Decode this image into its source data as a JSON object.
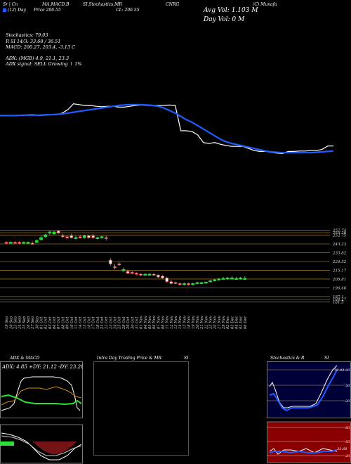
{
  "header": {
    "provider": "(C) Munafa",
    "title": "CNRG",
    "subtitle": "Sr | Cn",
    "indicators_label": "MA,MACD,B",
    "stoch_label": "SI,Stochastics,MR",
    "close_label": "CL: 206.55",
    "period_label": "(12) Day",
    "price_label": "Price 206.55",
    "avg_vol": "Avg Vol: 1.103 M",
    "day_vol": "Day Vol: 0  M"
  },
  "info": {
    "stochastics": "Stochastics: 79.03",
    "rsi": "R          SI 14/3: 33.68 / 36.51",
    "macd": "MACD: 200.27, 203.4, -3.13 C",
    "adx": "ADX:                    (MGB) 4.9, 21.1, 23.3",
    "adx_signal": "ADX  signal: SELL  Growing ↑ 1%"
  },
  "chart_data": [
    {
      "type": "line",
      "name": "moving averages",
      "x": [
        0,
        1,
        2,
        3,
        4,
        5,
        6,
        7,
        8,
        9,
        10,
        11,
        12,
        13,
        14,
        15,
        16,
        17,
        18,
        19,
        20,
        21,
        22,
        23,
        24,
        25,
        26,
        27,
        28,
        29,
        30,
        31,
        32,
        33,
        34,
        35,
        36,
        37,
        38,
        39,
        40,
        41,
        42,
        43,
        44,
        45,
        46,
        47,
        48,
        49,
        50,
        51,
        52,
        53,
        54,
        55,
        56,
        57,
        58,
        59
      ],
      "series": [
        {
          "name": "price",
          "color": "#ffffff",
          "values": [
            253,
            253,
            252.5,
            253.5,
            253,
            254,
            254,
            253,
            253.5,
            254,
            254,
            256,
            260,
            267,
            266,
            265,
            265,
            264,
            263.5,
            264,
            264,
            263,
            263,
            264,
            265,
            265.5,
            265,
            265,
            265,
            265,
            265.5,
            265,
            235,
            235,
            234,
            230,
            221,
            220,
            221,
            219,
            217.5,
            216.5,
            216.5,
            216.5,
            214,
            211.5,
            210.5,
            210.5,
            209.5,
            208.5,
            208,
            210.5,
            210.5,
            211,
            211,
            211.5,
            211.5,
            213,
            217,
            217
          ]
        },
        {
          "name": "ma",
          "color": "#1f5bff",
          "values": [
            253,
            253,
            253,
            253,
            253.5,
            253.5,
            253.5,
            253.5,
            254,
            254,
            254.5,
            255,
            256,
            257,
            258,
            259,
            260,
            261,
            262,
            263,
            264,
            265,
            265.5,
            266,
            266,
            266,
            265.5,
            265,
            264,
            262,
            259,
            256,
            252,
            248,
            245,
            241,
            237,
            233,
            229,
            225,
            222,
            220,
            218.5,
            217,
            215.5,
            214,
            212.5,
            211,
            210,
            209.5,
            209,
            209,
            209,
            209,
            209,
            209,
            209.5,
            210,
            210.5,
            211
          ]
        }
      ],
      "ylim": [
        190,
        290
      ]
    },
    {
      "type": "candlestick",
      "name": "daily price",
      "x_labels": [
        "19 Sep",
        "20 Sep",
        "23 Sep",
        "24 Sep",
        "25 Sep",
        "26 Sep",
        "27 Sep",
        "30 Sep",
        "01 Oct",
        "02 Oct",
        "03 Oct",
        "04 Oct",
        "07 Oct",
        "08 Oct",
        "09 Oct",
        "10 Oct",
        "11 Oct",
        "14 Oct",
        "15 Oct",
        "16 Oct",
        "17 Oct",
        "18 Oct",
        "21 Oct",
        "22 Oct",
        "23 Oct",
        "24 Oct",
        "25 Oct",
        "28 Oct",
        "29 Oct",
        "30 Oct",
        "31 Oct",
        "01 Nov",
        "04 Nov",
        "05 Nov",
        "06 Nov",
        "07 Nov",
        "08 Nov",
        "11 Nov",
        "12 Nov",
        "13 Nov",
        "14 Nov",
        "15 Nov",
        "18 Nov",
        "19 Nov",
        "20 Nov",
        "21 Nov",
        "22 Nov",
        "25 Nov",
        "26 Nov",
        "27 Nov",
        "29 Nov",
        "02 Dec",
        "03 Dec",
        "04 Dec",
        "05 Dec",
        "06 Dec"
      ],
      "candles": [
        {
          "o": 245,
          "h": 246,
          "l": 243,
          "c": 244
        },
        {
          "o": 245,
          "h": 246,
          "l": 244,
          "c": 245
        },
        {
          "o": 245,
          "h": 246,
          "l": 244,
          "c": 244.5
        },
        {
          "o": 245,
          "h": 246,
          "l": 243,
          "c": 244
        },
        {
          "o": 245,
          "h": 246,
          "l": 244,
          "c": 245
        },
        {
          "o": 244,
          "h": 246,
          "l": 243,
          "c": 245
        },
        {
          "o": 244,
          "h": 246,
          "l": 243,
          "c": 243.5
        },
        {
          "o": 245,
          "h": 248,
          "l": 244,
          "c": 247
        },
        {
          "o": 248,
          "h": 252,
          "l": 247,
          "c": 250
        },
        {
          "o": 251,
          "h": 254,
          "l": 250,
          "c": 253
        },
        {
          "o": 255,
          "h": 257,
          "l": 253,
          "c": 256
        },
        {
          "o": 254,
          "h": 257,
          "l": 253,
          "c": 256
        },
        {
          "o": 257,
          "h": 258,
          "l": 254,
          "c": 255
        },
        {
          "o": 252,
          "h": 254,
          "l": 250,
          "c": 251
        },
        {
          "o": 251,
          "h": 253,
          "l": 249,
          "c": 250
        },
        {
          "o": 252,
          "h": 254,
          "l": 249,
          "c": 250
        },
        {
          "o": 249,
          "h": 252,
          "l": 248,
          "c": 250
        },
        {
          "o": 251,
          "h": 253,
          "l": 249,
          "c": 250
        },
        {
          "o": 250,
          "h": 253,
          "l": 249,
          "c": 252
        },
        {
          "o": 252,
          "h": 253,
          "l": 249,
          "c": 250
        },
        {
          "o": 252,
          "h": 254,
          "l": 249,
          "c": 250
        },
        {
          "o": 249,
          "h": 251,
          "l": 248,
          "c": 250
        },
        {
          "o": 250,
          "h": 252,
          "l": 249,
          "c": 251
        },
        {
          "o": 250,
          "h": 252,
          "l": 247,
          "c": 249
        },
        {
          "o": 226,
          "h": 228,
          "l": 220,
          "c": 222
        },
        {
          "o": 219,
          "h": 222,
          "l": 216,
          "c": 218
        },
        {
          "o": 222,
          "h": 224,
          "l": 220,
          "c": 221
        },
        {
          "o": 215,
          "h": 218,
          "l": 213,
          "c": 216
        },
        {
          "o": 214,
          "h": 216,
          "l": 211,
          "c": 212
        },
        {
          "o": 213,
          "h": 214,
          "l": 211,
          "c": 212
        },
        {
          "o": 212,
          "h": 213,
          "l": 210,
          "c": 211
        },
        {
          "o": 211,
          "h": 212,
          "l": 209,
          "c": 210
        },
        {
          "o": 210,
          "h": 212,
          "l": 209,
          "c": 211
        },
        {
          "o": 210,
          "h": 212,
          "l": 209,
          "c": 211
        },
        {
          "o": 211,
          "h": 212,
          "l": 209,
          "c": 210
        },
        {
          "o": 210,
          "h": 211,
          "l": 207,
          "c": 208
        },
        {
          "o": 209,
          "h": 210,
          "l": 206,
          "c": 207
        },
        {
          "o": 207,
          "h": 208,
          "l": 202,
          "c": 203
        },
        {
          "o": 203,
          "h": 205,
          "l": 200,
          "c": 201
        },
        {
          "o": 202,
          "h": 203,
          "l": 200,
          "c": 201.5
        },
        {
          "o": 201,
          "h": 202,
          "l": 199,
          "c": 200
        },
        {
          "o": 200,
          "h": 202,
          "l": 199,
          "c": 201
        },
        {
          "o": 201,
          "h": 202,
          "l": 199,
          "c": 200
        },
        {
          "o": 200,
          "h": 202,
          "l": 199,
          "c": 201
        },
        {
          "o": 201,
          "h": 203,
          "l": 200,
          "c": 202
        },
        {
          "o": 201,
          "h": 203,
          "l": 200,
          "c": 202
        },
        {
          "o": 202,
          "h": 203,
          "l": 201,
          "c": 202.5
        },
        {
          "o": 203,
          "h": 205,
          "l": 202,
          "c": 204
        },
        {
          "o": 204,
          "h": 206,
          "l": 203,
          "c": 205
        },
        {
          "o": 205,
          "h": 207,
          "l": 204,
          "c": 206
        },
        {
          "o": 206,
          "h": 208,
          "l": 205,
          "c": 206.5
        },
        {
          "o": 206,
          "h": 208,
          "l": 205,
          "c": 207
        },
        {
          "o": 206,
          "h": 209,
          "l": 205,
          "c": 207
        },
        {
          "o": 206,
          "h": 208,
          "l": 205,
          "c": 206.5
        },
        {
          "o": 206,
          "h": 208,
          "l": 205,
          "c": 207
        },
        {
          "o": 206,
          "h": 209,
          "l": 205,
          "c": 206.55
        }
      ],
      "y_ticks": [
        "257.74",
        "255.26",
        "252.75",
        "243.23",
        "233.82",
        "224.52",
        "215.17",
        "205.81",
        "196.46",
        "187.1",
        "184.27",
        "181.5"
      ],
      "ylim": [
        178,
        262
      ]
    }
  ],
  "panels": {
    "adx": {
      "title": "ADX  & MACD",
      "readout": "ADX: 4.85  +DY: 21.12  -DY: 23.28"
    },
    "intraday": {
      "title": "Intra  Day Trading Price  & MR",
      "title_right": "SI"
    },
    "stoch": {
      "title": "Stochastics & R",
      "title_right": "SI",
      "value_label": "79.03",
      "levels": [
        "80",
        "50",
        "20"
      ]
    },
    "rsi": {
      "levels": [
        "80",
        "50",
        "20"
      ],
      "value_label": "33.68"
    }
  }
}
